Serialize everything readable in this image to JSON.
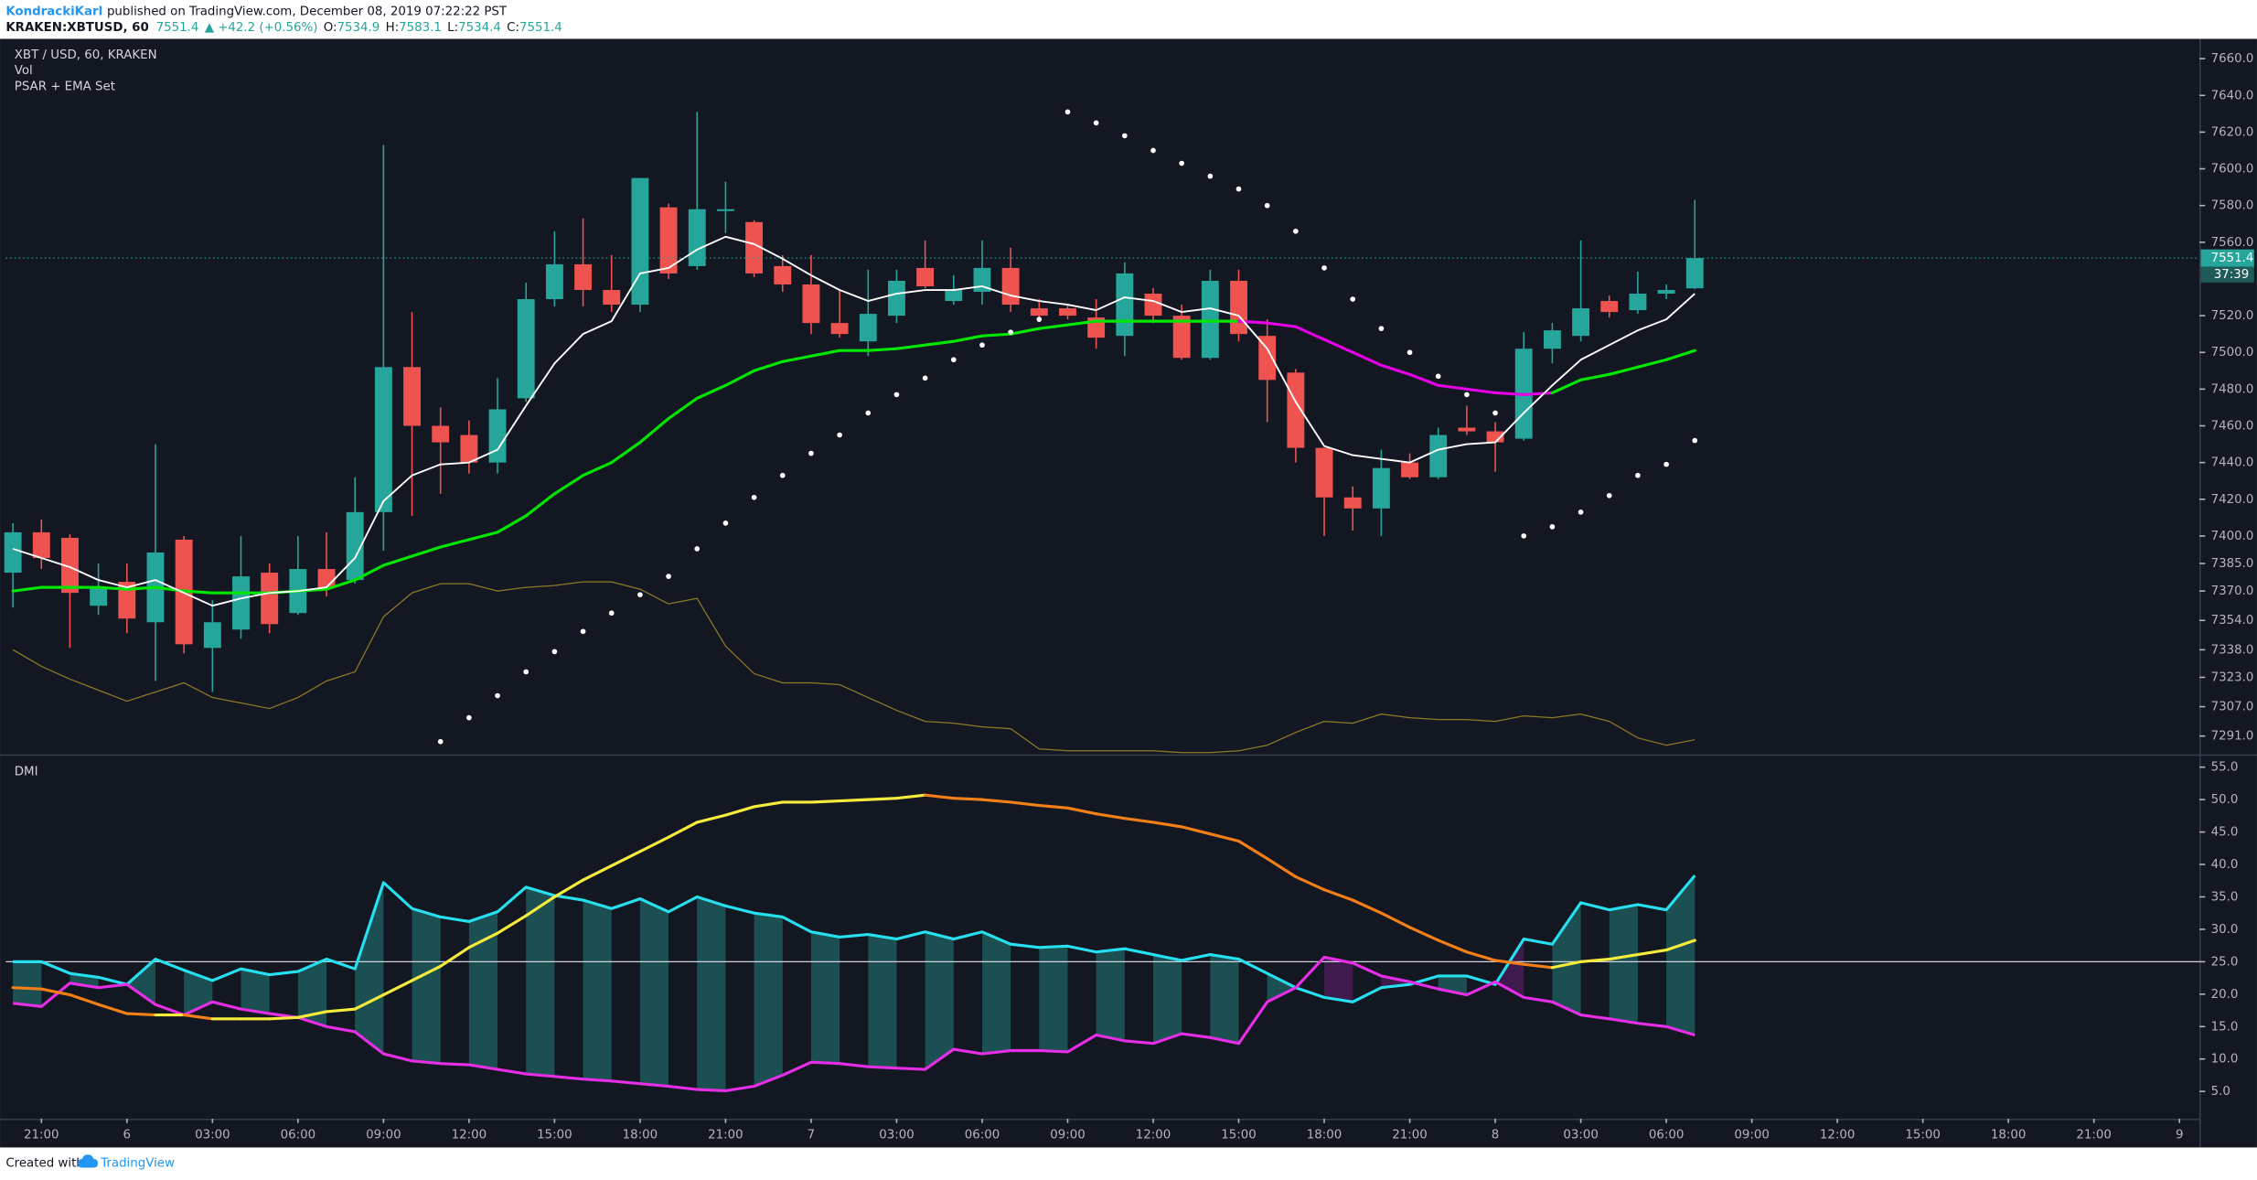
{
  "header": {
    "author": "KondrackiKarl",
    "published": "published on TradingView.com, December 08, 2019 07:22:22 PST",
    "symbol": "KRAKEN:XBTUSD, 60",
    "change": "▲ +42.2 (+0.56%)",
    "ohlc_labels": [
      "O:",
      "H:",
      "L:",
      "C:"
    ]
  },
  "footer": {
    "created": "Created with",
    "brand": "TradingView"
  },
  "chart_data": [
    {
      "type": "candlestick",
      "title": "XBT / USD, 60, KRAKEN",
      "indicators": [
        "Vol",
        "PSAR + EMA Set"
      ],
      "x": [
        0,
        1,
        2,
        3,
        4,
        5,
        6,
        7,
        8,
        9,
        10,
        11,
        12,
        13,
        14,
        15,
        16,
        17,
        18,
        19,
        20,
        21,
        22,
        23,
        24,
        25,
        26,
        27,
        28,
        29,
        30,
        31,
        32,
        33,
        34,
        35,
        36,
        37,
        38,
        39,
        40,
        41,
        42,
        43,
        44,
        45,
        46,
        47,
        48,
        49,
        50,
        51,
        52,
        53,
        54,
        55,
        56,
        57,
        58,
        59
      ],
      "open": [
        7380,
        7402,
        7399,
        7362,
        7375,
        7353,
        7398,
        7339,
        7349,
        7380,
        7358,
        7382,
        7376,
        7413,
        7492,
        7460,
        7455,
        7440,
        7475,
        7529,
        7548,
        7534,
        7526,
        7579,
        7547,
        7577,
        7571,
        7547,
        7537,
        7516,
        7506,
        7520,
        7546,
        7528,
        7533,
        7546,
        7524,
        7524,
        7519,
        7509,
        7532,
        7520,
        7497,
        7539,
        7509,
        7489,
        7448,
        7421,
        7415,
        7440,
        7432,
        7459,
        7457,
        7453,
        7502,
        7509,
        7528,
        7523,
        7532,
        7534.9
      ],
      "high": [
        7407,
        7409,
        7401,
        7385,
        7385,
        7450,
        7400,
        7365,
        7400,
        7385,
        7400,
        7402,
        7432,
        7613,
        7522,
        7470,
        7463,
        7486,
        7538,
        7566,
        7573,
        7553,
        7595,
        7581,
        7631,
        7593,
        7572,
        7553,
        7553,
        7534,
        7545,
        7545,
        7561,
        7542,
        7561,
        7557,
        7529,
        7526,
        7529,
        7549,
        7535,
        7526,
        7545,
        7545,
        7518,
        7491,
        7448,
        7427,
        7447,
        7445,
        7459,
        7471,
        7462,
        7511,
        7516,
        7561,
        7531,
        7544,
        7537,
        7583.1
      ],
      "low": [
        7361,
        7382,
        7339,
        7357,
        7347,
        7321,
        7336,
        7315,
        7344,
        7347,
        7357,
        7367,
        7374,
        7392,
        7411,
        7423,
        7434,
        7434,
        7473,
        7525,
        7525,
        7522,
        7522,
        7540,
        7545,
        7565,
        7541,
        7533,
        7510,
        7508,
        7498,
        7516,
        7535,
        7526,
        7526,
        7522,
        7518,
        7518,
        7502,
        7498,
        7516,
        7496,
        7496,
        7506,
        7462,
        7440,
        7400,
        7403,
        7400,
        7431,
        7431,
        7455,
        7435,
        7452,
        7494,
        7506,
        7519,
        7521,
        7529,
        7534.4
      ],
      "close": [
        7402,
        7388,
        7369,
        7372,
        7355,
        7391,
        7341,
        7353,
        7378,
        7352,
        7382,
        7372,
        7413,
        7492,
        7460,
        7451,
        7440,
        7469,
        7529,
        7548,
        7534,
        7526,
        7595,
        7543,
        7578,
        7578,
        7543,
        7537,
        7516,
        7510,
        7521,
        7539,
        7536,
        7534,
        7546,
        7526,
        7520,
        7520,
        7508,
        7543,
        7520,
        7497,
        7539,
        7510,
        7485,
        7448,
        7421,
        7415,
        7437,
        7432,
        7455,
        7457,
        7451,
        7502,
        7512,
        7524,
        7522,
        7532,
        7534,
        7551.4
      ],
      "up_color": "#26a69a",
      "down_color": "#ef5350",
      "series": [
        {
          "type": "line",
          "color": "#8c7a26",
          "width": 0.8,
          "values": [
            7338,
            7329,
            7322,
            7316,
            7310,
            7315,
            7320,
            7312,
            7309,
            7306,
            7312,
            7321,
            7326,
            7356,
            7369,
            7374,
            7374,
            7370,
            7372,
            7373,
            7375,
            7375,
            7371,
            7363,
            7366,
            7340,
            7325,
            7320,
            7320,
            7319,
            7312,
            7305,
            7299,
            7298,
            7296,
            7295,
            7284,
            7283,
            7283,
            7283,
            7283,
            7282,
            7282,
            7283,
            7286,
            7293,
            7299,
            7298,
            7303,
            7301,
            7300,
            7300,
            7299,
            7302,
            7301,
            7303,
            7299,
            7290,
            7286,
            7289
          ]
        },
        {
          "type": "line",
          "width": 2,
          "values": [
            7370,
            7372,
            7372,
            7372,
            7371,
            7372,
            7370,
            7369,
            7369,
            7369,
            7370,
            7371,
            7376,
            7384,
            7389,
            7394,
            7398,
            7402,
            7411,
            7423,
            7433,
            7440,
            7451,
            7464,
            7475,
            7482,
            7490,
            7495,
            7498,
            7501,
            7501,
            7502,
            7504,
            7506,
            7509,
            7510,
            7513,
            7515,
            7517,
            7517,
            7517,
            7517,
            7517,
            7517,
            7516,
            7514,
            7507,
            7500,
            7493,
            7488,
            7482,
            7480,
            7478,
            7477,
            7478,
            7485,
            7488,
            7492,
            7496,
            7501
          ],
          "colors": [
            "#00e600",
            "#00e600",
            "#00e600",
            "#00e600",
            "#00e600",
            "#00e600",
            "#00e600",
            "#00e600",
            "#00e600",
            "#00e600",
            "#00e600",
            "#00e600",
            "#00e600",
            "#00e600",
            "#00e600",
            "#00e600",
            "#00e600",
            "#00e600",
            "#00e600",
            "#00e600",
            "#00e600",
            "#00e600",
            "#00e600",
            "#00e600",
            "#00e600",
            "#00e600",
            "#00e600",
            "#00e600",
            "#00e600",
            "#00e600",
            "#00e600",
            "#00e600",
            "#00e600",
            "#00e600",
            "#00e600",
            "#00e600",
            "#00e600",
            "#00e600",
            "#00e600",
            "#00e600",
            "#00e600",
            "#00e600",
            "#00e600",
            "#00e600",
            "#e600e6",
            "#e600e6",
            "#e600e6",
            "#e600e6",
            "#e600e6",
            "#e600e6",
            "#e600e6",
            "#e600e6",
            "#e600e6",
            "#e600e6",
            "#e600e6",
            "#00e600",
            "#00e600",
            "#00e600",
            "#00e600",
            "#00e600"
          ]
        },
        {
          "type": "line",
          "color": "#ffffff",
          "width": 1.2,
          "values": [
            7393,
            7388,
            7383,
            7376,
            7372,
            7376,
            7369,
            7362,
            7366,
            7369,
            7370,
            7372,
            7388,
            7419,
            7433,
            7439,
            7440,
            7447,
            7471,
            7494,
            7510,
            7517,
            7543,
            7546,
            7556,
            7563,
            7559,
            7551,
            7542,
            7534,
            7528,
            7532,
            7534,
            7534,
            7536,
            7531,
            7528,
            7526,
            7523,
            7530,
            7528,
            7522,
            7524,
            7520,
            7502,
            7473,
            7449,
            7444,
            7442,
            7440,
            7447,
            7450,
            7451,
            7467,
            7482,
            7496,
            7504,
            7512,
            7518,
            7532
          ]
        },
        {
          "type": "dots",
          "color": "#ffffff",
          "values": [
            null,
            null,
            null,
            null,
            null,
            null,
            null,
            null,
            null,
            null,
            null,
            null,
            null,
            null,
            null,
            7288,
            7301,
            7313,
            7326,
            7337,
            7348,
            7358,
            7368,
            7378,
            7393,
            7407,
            7421,
            7433,
            7445,
            7455,
            7467,
            7477,
            7486,
            7496,
            7504,
            7511,
            7518,
            7631,
            7625,
            7618,
            7610,
            7603,
            7596,
            7589,
            7580,
            7566,
            7546,
            7529,
            7513,
            7500,
            7487,
            7477,
            7467,
            7400,
            7405,
            7413,
            7422,
            7433,
            7439,
            7452
          ]
        }
      ],
      "xlim": [
        -0.25,
        76.7
      ],
      "xticks": [
        {
          "value": 1,
          "label": "21:00"
        },
        {
          "value": 4,
          "label": "6"
        },
        {
          "value": 7,
          "label": "03:00"
        },
        {
          "value": 10,
          "label": "06:00"
        },
        {
          "value": 13,
          "label": "09:00"
        },
        {
          "value": 16,
          "label": "12:00"
        },
        {
          "value": 19,
          "label": "15:00"
        },
        {
          "value": 22,
          "label": "18:00"
        },
        {
          "value": 25,
          "label": "21:00"
        },
        {
          "value": 28,
          "label": "7"
        },
        {
          "value": 31,
          "label": "03:00"
        },
        {
          "value": 34,
          "label": "06:00"
        },
        {
          "value": 37,
          "label": "09:00"
        },
        {
          "value": 40,
          "label": "12:00"
        },
        {
          "value": 43,
          "label": "15:00"
        },
        {
          "value": 46,
          "label": "18:00"
        },
        {
          "value": 49,
          "label": "21:00"
        },
        {
          "value": 52,
          "label": "8"
        },
        {
          "value": 55,
          "label": "03:00"
        },
        {
          "value": 58,
          "label": "06:00"
        },
        {
          "value": 61,
          "label": "09:00"
        },
        {
          "value": 64,
          "label": "12:00"
        },
        {
          "value": 67,
          "label": "15:00"
        },
        {
          "value": 70,
          "label": "18:00"
        },
        {
          "value": 73,
          "label": "21:00"
        },
        {
          "value": 76,
          "label": "9"
        }
      ],
      "ylim": [
        7281,
        7670
      ],
      "yticks": [
        {
          "value": 7291,
          "label": "7291.0"
        },
        {
          "value": 7307,
          "label": "7307.0"
        },
        {
          "value": 7323,
          "label": "7323.0"
        },
        {
          "value": 7338,
          "label": "7338.0"
        },
        {
          "value": 7354,
          "label": "7354.0"
        },
        {
          "value": 7370,
          "label": "7370.0"
        },
        {
          "value": 7385,
          "label": "7385.0"
        },
        {
          "value": 7400,
          "label": "7400.0"
        },
        {
          "value": 7420,
          "label": "7420.0"
        },
        {
          "value": 7440,
          "label": "7440.0"
        },
        {
          "value": 7460,
          "label": "7460.0"
        },
        {
          "value": 7480,
          "label": "7480.0"
        },
        {
          "value": 7500,
          "label": "7500.0"
        },
        {
          "value": 7520,
          "label": "7520.0"
        },
        {
          "value": 7560,
          "label": "7560.0"
        },
        {
          "value": 7580,
          "label": "7580.0"
        },
        {
          "value": 7600,
          "label": "7600.0"
        },
        {
          "value": 7620,
          "label": "7620.0"
        },
        {
          "value": 7640,
          "label": "7640.0"
        },
        {
          "value": 7660,
          "label": "7660.0"
        }
      ],
      "last_price_color": "#26a69a",
      "countdown": "37:39"
    },
    {
      "type": "line",
      "title": "DMI",
      "x": [
        0,
        1,
        2,
        3,
        4,
        5,
        6,
        7,
        8,
        9,
        10,
        11,
        12,
        13,
        14,
        15,
        16,
        17,
        18,
        19,
        20,
        21,
        22,
        23,
        24,
        25,
        26,
        27,
        28,
        29,
        30,
        31,
        32,
        33,
        34,
        35,
        36,
        37,
        38,
        39,
        40,
        41,
        42,
        43,
        44,
        45,
        46,
        47,
        48,
        49,
        50,
        51,
        52,
        53,
        54,
        55,
        56,
        57,
        58,
        59
      ],
      "series": [
        {
          "color": "#26e0f0",
          "values": [
            25,
            25,
            23.2,
            22.6,
            21.5,
            25.4,
            23.7,
            22.1,
            23.9,
            23.0,
            23.5,
            25.4,
            23.9,
            37.2,
            33.2,
            31.9,
            31.2,
            32.7,
            36.5,
            35.2,
            34.5,
            33.2,
            34.7,
            32.7,
            35.0,
            33.6,
            32.5,
            31.9,
            29.6,
            28.8,
            29.2,
            28.5,
            29.6,
            28.5,
            29.6,
            27.7,
            27.2,
            27.4,
            26.5,
            27.0,
            26.1,
            25.2,
            26.1,
            25.4,
            23.2,
            21.0,
            19.5,
            18.8,
            21.0,
            21.5,
            22.8,
            22.8,
            21.5,
            28.5,
            27.7,
            34.1,
            33.0,
            33.8,
            33.0,
            38.3
          ]
        },
        {
          "color": "#e62ee6",
          "values": [
            18.6,
            18.1,
            21.7,
            21.0,
            21.5,
            18.4,
            16.8,
            18.8,
            17.7,
            17.0,
            16.4,
            15.0,
            14.2,
            10.8,
            9.7,
            9.3,
            9.1,
            8.4,
            7.7,
            7.3,
            6.9,
            6.6,
            6.2,
            5.8,
            5.3,
            5.1,
            5.8,
            7.5,
            9.5,
            9.3,
            8.8,
            8.6,
            8.4,
            11.5,
            10.8,
            11.3,
            11.3,
            11.1,
            13.7,
            12.8,
            12.4,
            13.9,
            13.3,
            12.4,
            18.8,
            21.0,
            25.7,
            24.8,
            22.8,
            21.9,
            20.8,
            19.9,
            21.9,
            19.5,
            18.8,
            16.8,
            16.2,
            15.5,
            15.0,
            13.7
          ]
        },
        {
          "rising_color": "#f5eb3b",
          "falling_color": "#f57f17",
          "values": [
            21.0,
            20.8,
            19.9,
            18.4,
            17.0,
            16.8,
            16.8,
            16.2,
            16.2,
            16.2,
            16.4,
            17.3,
            17.7,
            19.9,
            22.1,
            24.3,
            27.2,
            29.4,
            32.1,
            35.0,
            37.6,
            39.8,
            42.0,
            44.2,
            46.5,
            47.6,
            48.9,
            49.6,
            49.6,
            49.8,
            50.0,
            50.2,
            50.7,
            50.2,
            50.0,
            49.6,
            49.1,
            48.7,
            47.8,
            47.1,
            46.5,
            45.8,
            44.7,
            43.6,
            40.9,
            38.1,
            36.1,
            34.5,
            32.5,
            30.3,
            28.3,
            26.5,
            25.2,
            24.6,
            24.1,
            25.0,
            25.4,
            26.1,
            26.8,
            28.3
          ]
        }
      ],
      "fill_colors": [
        "#1c4f52",
        "#3e1a4d"
      ],
      "reference_line": 25,
      "ylim": [
        0.8,
        56.3
      ],
      "yticks": [
        {
          "value": 5,
          "label": "5.0"
        },
        {
          "value": 10,
          "label": "10.0"
        },
        {
          "value": 15,
          "label": "15.0"
        },
        {
          "value": 20,
          "label": "20.0"
        },
        {
          "value": 25,
          "label": "25.0"
        },
        {
          "value": 30,
          "label": "30.0"
        },
        {
          "value": 35,
          "label": "35.0"
        },
        {
          "value": 40,
          "label": "40.0"
        },
        {
          "value": 45,
          "label": "45.0"
        },
        {
          "value": 50,
          "label": "50.0"
        },
        {
          "value": 55,
          "label": "55.0"
        }
      ]
    }
  ]
}
